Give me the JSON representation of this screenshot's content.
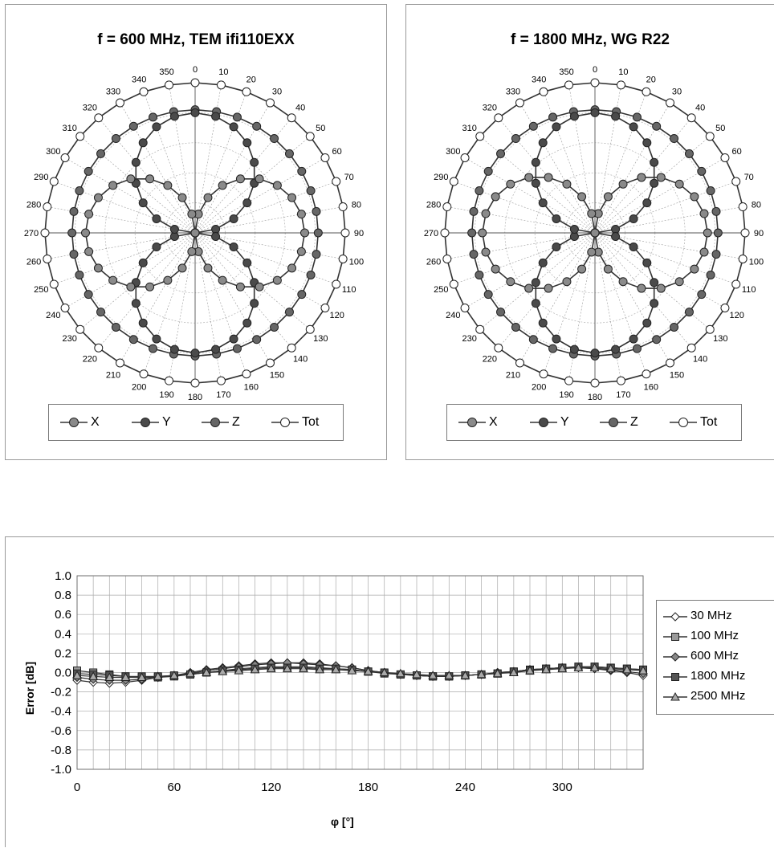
{
  "chart_data": [
    {
      "type": "polar",
      "title": "f = 600 MHz, TEM  ifi110EXX",
      "angular_ticks": [
        "0",
        "10",
        "20",
        "30",
        "40",
        "50",
        "60",
        "70",
        "80",
        "90",
        "100",
        "110",
        "120",
        "130",
        "140",
        "150",
        "160",
        "170",
        "180",
        "190",
        "200",
        "210",
        "220",
        "230",
        "240",
        "250",
        "260",
        "270",
        "280",
        "290",
        "300",
        "310",
        "320",
        "330",
        "340",
        "350"
      ],
      "rmax": 1.0,
      "series": [
        {
          "name": "X",
          "color": "#8a8a8a",
          "shape": "lobe2",
          "axis_deg": 90,
          "r": 0.73
        },
        {
          "name": "Y",
          "color": "#4a4a4a",
          "shape": "lobe2",
          "axis_deg": 0,
          "r": 0.8
        },
        {
          "name": "Z",
          "color": "#666666",
          "shape": "ring",
          "r": 0.82
        },
        {
          "name": "Tot",
          "color": "#ffffff",
          "shape": "ring",
          "r": 1.0
        }
      ],
      "legend": [
        "X",
        "Y",
        "Z",
        "Tot"
      ]
    },
    {
      "type": "polar",
      "title": "f = 1800 MHz, WG R22",
      "angular_ticks": [
        "0",
        "10",
        "20",
        "30",
        "40",
        "50",
        "60",
        "70",
        "80",
        "90",
        "100",
        "110",
        "120",
        "130",
        "140",
        "150",
        "160",
        "170",
        "180",
        "190",
        "200",
        "210",
        "220",
        "230",
        "240",
        "250",
        "260",
        "270",
        "280",
        "290",
        "300",
        "310",
        "320",
        "330",
        "340",
        "350"
      ],
      "rmax": 1.0,
      "series": [
        {
          "name": "X",
          "color": "#8a8a8a",
          "shape": "lobe2",
          "axis_deg": 90,
          "r": 0.75
        },
        {
          "name": "Y",
          "color": "#4a4a4a",
          "shape": "lobe2",
          "axis_deg": 0,
          "r": 0.8
        },
        {
          "name": "Z",
          "color": "#666666",
          "shape": "ring",
          "r": 0.82
        },
        {
          "name": "Tot",
          "color": "#ffffff",
          "shape": "ring",
          "r": 1.0
        }
      ],
      "legend": [
        "X",
        "Y",
        "Z",
        "Tot"
      ]
    },
    {
      "type": "line",
      "title": "",
      "xlabel": "φ [°]",
      "ylabel": "Error [dB]",
      "xlim": [
        0,
        350
      ],
      "ylim": [
        -1.0,
        1.0
      ],
      "xticks": [
        "0",
        "60",
        "120",
        "180",
        "240",
        "300"
      ],
      "yticks": [
        "1.0",
        "0.8",
        "0.6",
        "0.4",
        "0.2",
        "0.0",
        "-0.2",
        "-0.4",
        "-0.6",
        "-0.8",
        "-1.0"
      ],
      "grid": true,
      "legend_position": "right",
      "x": [
        0,
        10,
        20,
        30,
        40,
        50,
        60,
        70,
        80,
        90,
        100,
        110,
        120,
        130,
        140,
        150,
        160,
        170,
        180,
        190,
        200,
        210,
        220,
        230,
        240,
        250,
        260,
        270,
        280,
        290,
        300,
        310,
        320,
        330,
        340,
        350
      ],
      "series": [
        {
          "name": "30 MHz",
          "marker": "diamond-open",
          "values": [
            -0.08,
            -0.1,
            -0.11,
            -0.1,
            -0.08,
            -0.05,
            -0.03,
            0.0,
            0.03,
            0.05,
            0.07,
            0.09,
            0.1,
            0.1,
            0.1,
            0.09,
            0.07,
            0.05,
            0.02,
            0.0,
            -0.02,
            -0.03,
            -0.04,
            -0.04,
            -0.03,
            -0.02,
            0.0,
            0.01,
            0.03,
            0.04,
            0.05,
            0.05,
            0.04,
            0.02,
            0.0,
            -0.03
          ]
        },
        {
          "name": "100 MHz",
          "marker": "square-light",
          "values": [
            0.02,
            0.0,
            -0.02,
            -0.04,
            -0.05,
            -0.05,
            -0.04,
            -0.02,
            0.0,
            0.02,
            0.04,
            0.05,
            0.06,
            0.06,
            0.06,
            0.05,
            0.04,
            0.03,
            0.01,
            -0.01,
            -0.02,
            -0.03,
            -0.04,
            -0.04,
            -0.03,
            -0.02,
            -0.01,
            0.01,
            0.03,
            0.04,
            0.05,
            0.06,
            0.06,
            0.05,
            0.04,
            0.03
          ]
        },
        {
          "name": "600 MHz",
          "marker": "diamond-grey",
          "values": [
            -0.05,
            -0.07,
            -0.08,
            -0.08,
            -0.07,
            -0.05,
            -0.03,
            -0.01,
            0.02,
            0.04,
            0.06,
            0.08,
            0.09,
            0.1,
            0.09,
            0.08,
            0.07,
            0.05,
            0.02,
            0.0,
            -0.02,
            -0.03,
            -0.04,
            -0.04,
            -0.03,
            -0.02,
            0.0,
            0.01,
            0.03,
            0.04,
            0.05,
            0.05,
            0.04,
            0.03,
            0.01,
            -0.01
          ]
        },
        {
          "name": "1800 MHz",
          "marker": "square-dark",
          "values": [
            -0.01,
            -0.02,
            -0.03,
            -0.04,
            -0.04,
            -0.04,
            -0.03,
            -0.02,
            0.0,
            0.02,
            0.03,
            0.04,
            0.05,
            0.05,
            0.05,
            0.04,
            0.04,
            0.03,
            0.01,
            0.0,
            -0.02,
            -0.03,
            -0.04,
            -0.04,
            -0.03,
            -0.02,
            -0.01,
            0.01,
            0.02,
            0.04,
            0.05,
            0.06,
            0.06,
            0.05,
            0.04,
            0.03
          ]
        },
        {
          "name": "2500 MHz",
          "marker": "triangle",
          "values": [
            -0.03,
            -0.04,
            -0.05,
            -0.05,
            -0.05,
            -0.04,
            -0.03,
            -0.01,
            0.0,
            0.01,
            0.02,
            0.03,
            0.04,
            0.04,
            0.04,
            0.03,
            0.03,
            0.02,
            0.01,
            0.0,
            -0.01,
            -0.02,
            -0.03,
            -0.03,
            -0.03,
            -0.02,
            -0.01,
            0.0,
            0.02,
            0.03,
            0.04,
            0.05,
            0.05,
            0.04,
            0.03,
            0.02
          ]
        }
      ]
    }
  ]
}
